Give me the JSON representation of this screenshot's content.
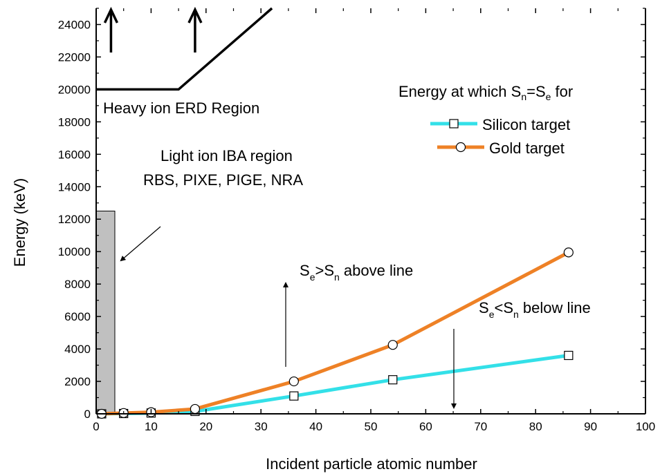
{
  "chart_data": {
    "type": "line",
    "xlabel": "Incident particle atomic number",
    "ylabel": "Energy (keV)",
    "xlim": [
      0,
      100
    ],
    "ylim": [
      0,
      25000
    ],
    "xticks": [
      "0",
      "10",
      "20",
      "30",
      "40",
      "50",
      "60",
      "70",
      "80",
      "90",
      "100"
    ],
    "yticks": [
      "0",
      "2000",
      "4000",
      "6000",
      "8000",
      "10000",
      "12000",
      "14000",
      "16000",
      "18000",
      "20000",
      "22000",
      "24000"
    ],
    "grid": false,
    "legend": {
      "title_prefix": "Energy at which S",
      "title_sub1": "n",
      "title_eq": "=S",
      "title_sub2": "e",
      "title_suffix": " for",
      "placement": "right"
    },
    "series": [
      {
        "name": "Silicon target",
        "color": "#33e0e8",
        "marker": "square",
        "x": [
          1,
          5,
          10,
          18,
          36,
          54,
          86
        ],
        "y": [
          0,
          20,
          50,
          150,
          1100,
          2100,
          3600
        ]
      },
      {
        "name": "Gold target",
        "color": "#ee8126",
        "marker": "circle",
        "x": [
          1,
          5,
          10,
          18,
          36,
          54,
          86
        ],
        "y": [
          0,
          50,
          100,
          300,
          2000,
          4250,
          9950
        ]
      }
    ],
    "regions": {
      "heavy_ion_label": "Heavy ion ERD Region",
      "heavy_ion_boundary": [
        [
          0,
          20000
        ],
        [
          15,
          20000
        ],
        [
          32,
          25000
        ]
      ],
      "heavy_ion_arrows_x": [
        2.7,
        18
      ],
      "light_ion_label_line1": "Light ion IBA region",
      "light_ion_label_line2": "RBS, PIXE, PIGE, NRA",
      "light_ion_bar": {
        "x0": 0,
        "x1": 3.4,
        "y": 12500,
        "color": "#c0c0c0"
      }
    },
    "annotations": {
      "above": {
        "s1": "S",
        "sub1": "e",
        "op": ">S",
        "sub2": "n",
        "tail": " above line"
      },
      "below": {
        "s1": "S",
        "sub1": "e",
        "op": "<S",
        "sub2": "n",
        "tail": " below line"
      }
    }
  }
}
